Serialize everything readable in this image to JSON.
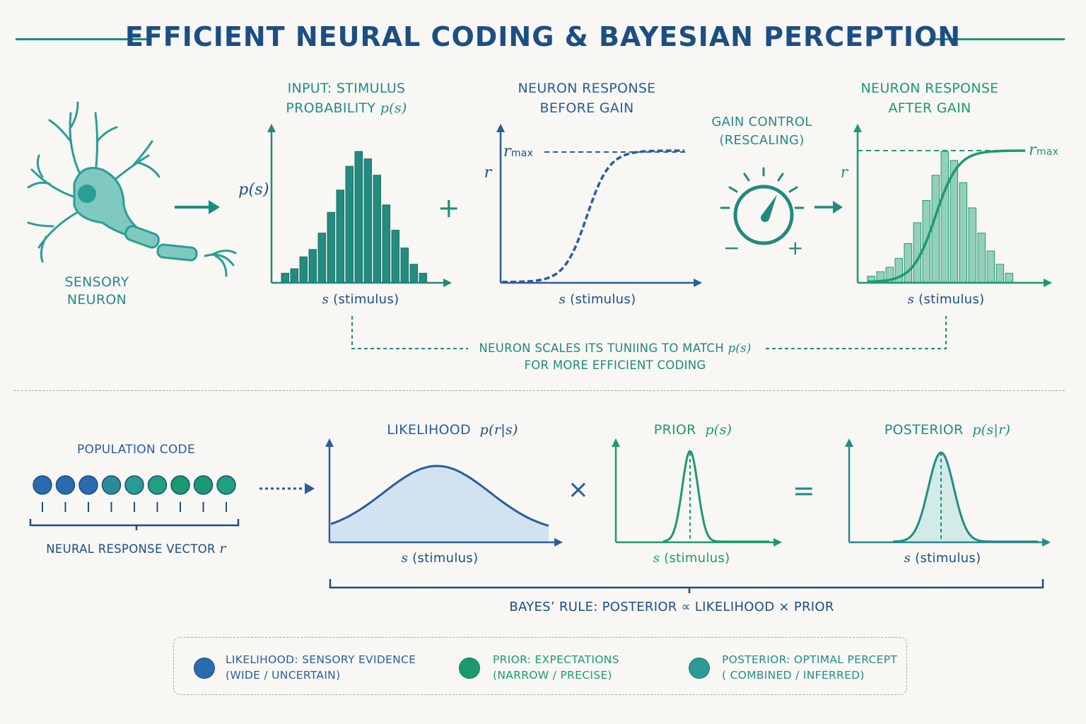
{
  "title": "EFFICIENT NEURAL CODING & BAYESIAN PERCEPTION",
  "colors": {
    "blue": "#2a5d9c",
    "green": "#1a9a72",
    "teal": "#238c8a",
    "navy": "#1c4e83"
  },
  "top": {
    "neuron_label": [
      "SENSORY",
      "NEURON"
    ],
    "input_title": [
      "INPUT: STIMULUS",
      "PROBABILITY"
    ],
    "input_symbol": "p(s)",
    "input_ylabel": "p(s)",
    "before_title": [
      "NEURON RESPONSE",
      "BEFORE GAIN"
    ],
    "gain_title": [
      "GAIN CONTROL",
      "(RESCALING)"
    ],
    "after_title": [
      "NEURON RESPONSE",
      "AFTER GAIN"
    ],
    "r_label": "r",
    "rmax_base": "r",
    "rmax_sub": "max",
    "x_var": "s",
    "x_text": " (stimulus)",
    "plus": "+",
    "minus": "−",
    "note": [
      "NEURON SCALES ITS TUNIING TO  MATCH",
      "FOR MORE EFFICIENT CODING"
    ],
    "note_symbol": "p(s)"
  },
  "bottom": {
    "population_title": "POPULATION CODE",
    "vector_label": "NEURAL RESPONSE VECTOR",
    "vector_symbol": "r",
    "likelihood_title": "LIKELIHOOD",
    "likelihood_symbol": "p(r|s)",
    "prior_title": "PRIOR",
    "prior_symbol": "p(s)",
    "posterior_title": "POSTERIOR",
    "posterior_symbol": "p(s|r)",
    "times": "×",
    "equals": "=",
    "bayes": "BAYES’ RULE:  POSTERIOR  ∝  LIKELIHOOD × PRIOR"
  },
  "legend": [
    {
      "line1": "LIKELIHOOD: SENSORY EVIDENCE",
      "line2": "(WIDE / UNCERTAIN)",
      "color": "#2a6aae"
    },
    {
      "line1": "PRIOR: EXPECTATIONS",
      "line2": "(NARROW / PRECISE)",
      "color": "#1a9a6e"
    },
    {
      "line1": "POSTERIOR: OPTIMAL PERCEPT",
      "line2": "( COMBINED / INFERRED)",
      "color": "#2a9a96"
    }
  ],
  "chart_data": [
    {
      "type": "bar",
      "name": "p(s)",
      "values": [
        0.06,
        0.09,
        0.17,
        0.22,
        0.33,
        0.47,
        0.62,
        0.78,
        0.88,
        0.83,
        0.72,
        0.52,
        0.35,
        0.23,
        0.12,
        0.06
      ]
    },
    {
      "type": "line",
      "name": "before gain",
      "values": [
        0.02,
        0.03,
        0.05,
        0.09,
        0.17,
        0.33,
        0.58,
        0.8,
        0.92,
        0.97,
        0.99,
        1.0
      ]
    },
    {
      "type": "bar",
      "name": "after gain",
      "values": [
        0.04,
        0.07,
        0.1,
        0.16,
        0.26,
        0.4,
        0.55,
        0.72,
        0.88,
        0.82,
        0.67,
        0.5,
        0.33,
        0.21,
        0.12,
        0.06
      ]
    },
    {
      "type": "area",
      "name": "likelihood",
      "values": [
        0.27,
        0.36,
        0.5,
        0.64,
        0.78,
        0.86,
        0.88,
        0.82,
        0.68,
        0.5,
        0.36,
        0.27
      ]
    }
  ]
}
